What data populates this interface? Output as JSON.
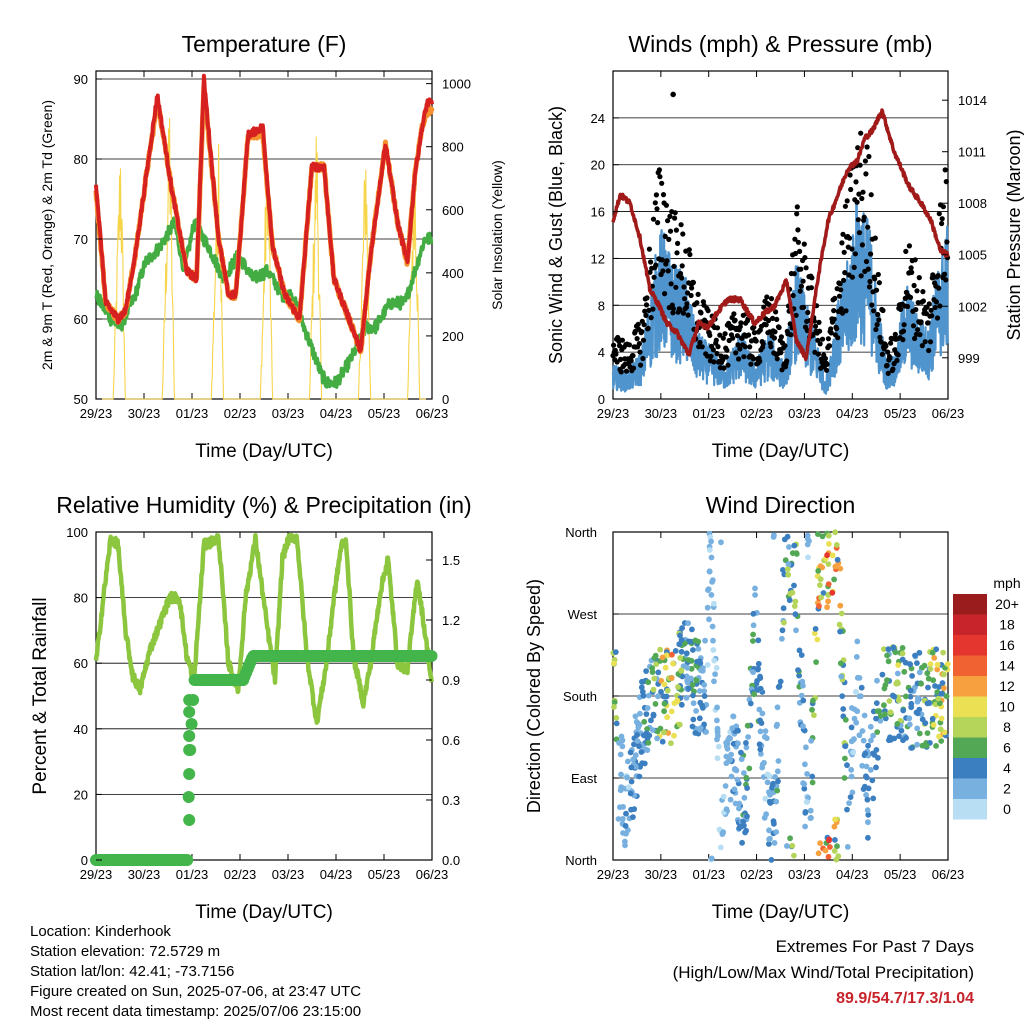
{
  "colors": {
    "t2m": "#d62120",
    "t9m": "#f5922f",
    "td": "#43ad43",
    "solar": "#f7d54a",
    "gust": "#000000",
    "wind": "#4f94cd",
    "pressure": "#a01a1a",
    "rh": "#8cc63f",
    "precip": "#43b54b",
    "extreme": "#c8242b"
  },
  "xaxis": {
    "title": "Time (Day/UTC)",
    "ticks": [
      "29/23",
      "30/23",
      "01/23",
      "02/23",
      "03/23",
      "04/23",
      "05/23",
      "06/23"
    ]
  },
  "temp": {
    "title": "Temperature (F)",
    "ylabel": "2m & 9m T (Red, Orange) & 2m Td (Green)",
    "y2label": "Solar Insolation (Yellow)",
    "ylim": [
      50,
      91
    ],
    "y2lim": [
      0,
      1040
    ],
    "yticks": [
      "50",
      "60",
      "70",
      "80",
      "90"
    ],
    "y2ticks": [
      "0",
      "200",
      "400",
      "600",
      "800",
      "1000"
    ]
  },
  "wind": {
    "title": "Winds (mph) & Pressure (mb)",
    "ylabel": "Sonic Wind & Gust (Blue, Black)",
    "y2label": "Station Pressure (Maroon)",
    "ylim": [
      0,
      28
    ],
    "y2lim": [
      996.6,
      1015.7
    ],
    "yticks": [
      "0",
      "4",
      "8",
      "12",
      "16",
      "20",
      "24"
    ],
    "y2ticks": [
      "999",
      "1002",
      "1005",
      "1008",
      "1011",
      "1014"
    ]
  },
  "rh": {
    "title": "Relative Humidity (%) & Precipitation (in)",
    "ylabel": "Percent & Total Rainfall",
    "ylim": [
      0,
      100
    ],
    "y2lim": [
      0,
      1.64
    ],
    "yticks": [
      "0",
      "20",
      "40",
      "60",
      "80",
      "100"
    ],
    "y2ticks": [
      "0.0",
      "0.3",
      "0.6",
      "0.9",
      "1.2",
      "1.5"
    ]
  },
  "dir": {
    "title": "Wind Direction",
    "ylabel": "Direction (Colored By Speed)",
    "yticks": [
      "North",
      "East",
      "South",
      "West",
      "North"
    ],
    "legend_title": "mph",
    "legend_labels": [
      "20+",
      "18",
      "16",
      "14",
      "12",
      "10",
      "8",
      "6",
      "4",
      "2",
      "0"
    ],
    "legend_colors": [
      "#9a1c1c",
      "#c8242b",
      "#e4352e",
      "#f06232",
      "#f7a040",
      "#ebe053",
      "#b5d55a",
      "#52a855",
      "#3c7fc0",
      "#78b1e0",
      "#b7def3"
    ]
  },
  "info": {
    "location": "Location: Kinderhook",
    "elevation": "Station elevation: 72.5729 m",
    "latlon": "Station lat/lon: 42.41; -73.7156",
    "created": "Figure created on Sun, 2025-07-06, at 23:47 UTC",
    "timestamp": "Most recent data timestamp: 2025/07/06 23:15:00"
  },
  "extremes": {
    "title": "Extremes For Past 7 Days",
    "subtitle": "(High/Low/Max Wind/Total Precipitation)",
    "values": "89.9/54.7/17.3/1.04"
  },
  "chart_data": [
    {
      "type": "line",
      "title": "Temperature (F)",
      "x_unit": "days since 29/23",
      "series": [
        {
          "name": "2m T",
          "color": "#d62120",
          "x": [
            0,
            0.2,
            0.45,
            0.6,
            0.8,
            1.05,
            1.25,
            1.35,
            1.55,
            1.85,
            2.05,
            2.2,
            2.5,
            2.7,
            2.85,
            3.1,
            3.4,
            3.6,
            3.85,
            4.15,
            4.4,
            4.65,
            4.85,
            5.1,
            5.4,
            5.6,
            5.9,
            6.15,
            6.35,
            6.5,
            6.65,
            6.75,
            6.85
          ],
          "y": [
            77,
            62,
            60,
            61,
            68,
            79,
            88,
            84,
            76,
            66,
            65,
            90,
            70,
            63,
            63,
            83,
            84,
            69,
            63,
            60,
            79,
            79,
            65,
            61,
            56,
            68,
            82,
            72,
            67,
            78,
            84,
            87,
            87
          ]
        },
        {
          "name": "9m T",
          "color": "#f5922f",
          "x": [
            0,
            0.2,
            0.45,
            0.6,
            0.8,
            1.05,
            1.25,
            1.35,
            1.55,
            1.85,
            2.05,
            2.2,
            2.5,
            2.7,
            2.85,
            3.1,
            3.4,
            3.6,
            3.85,
            4.15,
            4.4,
            4.65,
            4.85,
            5.1,
            5.4,
            5.6,
            5.9,
            6.15,
            6.35,
            6.5,
            6.65,
            6.75,
            6.85
          ],
          "y": [
            76,
            62,
            60,
            61,
            68,
            79,
            87,
            84,
            76,
            66,
            65,
            89,
            70,
            63,
            63,
            83,
            83,
            69,
            63,
            60,
            79,
            79,
            65,
            61,
            56,
            68,
            82,
            72,
            67,
            78,
            84,
            86,
            86
          ]
        },
        {
          "name": "2m Td",
          "color": "#43ad43",
          "x": [
            0,
            0.3,
            0.5,
            0.8,
            1.0,
            1.3,
            1.6,
            1.8,
            2.0,
            2.3,
            2.6,
            2.9,
            3.2,
            3.5,
            3.8,
            4.0,
            4.3,
            4.6,
            4.7,
            4.9,
            5.2,
            5.5,
            5.7,
            6.0,
            6.3,
            6.5,
            6.7,
            6.85
          ],
          "y": [
            63,
            60,
            59,
            63,
            67,
            69,
            72,
            66,
            72,
            69,
            65,
            68,
            65,
            66,
            63,
            63,
            58,
            53,
            52,
            52,
            55,
            59,
            59,
            62,
            62,
            66,
            70,
            70
          ]
        },
        {
          "name": "Solar Insolation",
          "color": "#f7d54a",
          "x": [
            0,
            0.35,
            0.5,
            0.6,
            1.0,
            1.35,
            1.5,
            1.6,
            2.0,
            2.35,
            2.5,
            2.6,
            3.0,
            3.35,
            3.5,
            3.6,
            4.0,
            4.35,
            4.5,
            4.6,
            5.0,
            5.35,
            5.5,
            5.6,
            6.0,
            6.35,
            6.5,
            6.6,
            6.85
          ],
          "y2": [
            0,
            0,
            900,
            0,
            0,
            0,
            1000,
            0,
            0,
            0,
            950,
            0,
            0,
            0,
            930,
            0,
            0,
            0,
            950,
            0,
            0,
            0,
            900,
            0,
            0,
            0,
            920,
            0,
            0
          ]
        }
      ]
    },
    {
      "type": "line",
      "title": "Winds (mph) & Pressure (mb)",
      "x_unit": "days since 29/23",
      "series": [
        {
          "name": "Gust",
          "color": "#000000",
          "x": [
            0,
            0.3,
            0.6,
            0.85,
            1.0,
            1.2,
            1.5,
            1.7,
            2.0,
            2.3,
            2.6,
            2.9,
            3.2,
            3.5,
            3.75,
            4.0,
            4.2,
            4.35,
            4.55,
            4.8,
            5.0,
            5.25,
            5.4,
            5.6,
            5.8,
            6.0,
            6.2,
            6.45,
            6.65,
            6.85
          ],
          "y": [
            5,
            4,
            6,
            15,
            18,
            14,
            12,
            8,
            6,
            5,
            7,
            5,
            8,
            4,
            14,
            10,
            6,
            3,
            9,
            15,
            20,
            18,
            10,
            4,
            5,
            12,
            10,
            7,
            14,
            18
          ]
        },
        {
          "name": "Sonic Wind",
          "color": "#4f94cd",
          "x": [
            0,
            0.3,
            0.6,
            0.85,
            1.0,
            1.2,
            1.5,
            1.7,
            2.0,
            2.3,
            2.6,
            2.9,
            3.2,
            3.5,
            3.75,
            4.0,
            4.2,
            4.35,
            4.55,
            4.8,
            5.0,
            5.25,
            5.4,
            5.6,
            5.8,
            6.0,
            6.2,
            6.45,
            6.65,
            6.85
          ],
          "y": [
            2,
            1.5,
            3,
            8,
            10,
            8,
            7,
            4,
            3,
            2,
            4,
            2,
            4,
            2,
            8,
            5,
            3,
            1,
            5,
            8,
            12,
            10,
            6,
            2,
            3,
            7,
            5,
            4,
            8,
            10
          ]
        },
        {
          "name": "Station Pressure",
          "color": "#a01a1a",
          "x": [
            0,
            0.15,
            0.35,
            0.55,
            0.75,
            0.95,
            1.1,
            1.3,
            1.55,
            1.75,
            1.95,
            2.15,
            2.35,
            2.6,
            2.9,
            3.1,
            3.3,
            3.55,
            3.75,
            3.95,
            4.2,
            4.4,
            4.6,
            4.8,
            5.0,
            5.15,
            5.3,
            5.5,
            5.75,
            6.05,
            6.3,
            6.5,
            6.7,
            6.85
          ],
          "y2": [
            1007,
            1008.5,
            1008,
            1006,
            1003,
            1002,
            1001,
            1000.5,
            999.2,
            1001,
            1000.8,
            1001.7,
            1002.4,
            1002.4,
            1001,
            1001.6,
            1002,
            1003.5,
            1000,
            999,
            1003.8,
            1007,
            1008.5,
            1010,
            1010.5,
            1011.8,
            1012.2,
            1013.4,
            1011,
            1009,
            1008,
            1007,
            1005.2,
            1005
          ]
        }
      ]
    },
    {
      "type": "line",
      "title": "Relative Humidity (%) & Precipitation (in)",
      "x_unit": "days since 29/23",
      "series": [
        {
          "name": "Relative Humidity",
          "color": "#8cc63f",
          "x": [
            0,
            0.15,
            0.3,
            0.45,
            0.6,
            0.75,
            0.9,
            1.1,
            1.3,
            1.5,
            1.7,
            1.85,
            2.0,
            2.2,
            2.5,
            2.7,
            2.9,
            3.05,
            3.25,
            3.5,
            3.65,
            3.8,
            3.95,
            4.1,
            4.3,
            4.5,
            4.7,
            4.85,
            5.0,
            5.1,
            5.25,
            5.45,
            5.6,
            5.8,
            5.95,
            6.15,
            6.35,
            6.55,
            6.7,
            6.85
          ],
          "y": [
            60,
            80,
            98,
            96,
            70,
            56,
            52,
            64,
            72,
            80,
            80,
            62,
            55,
            96,
            98,
            60,
            52,
            80,
            98,
            70,
            55,
            92,
            99,
            98,
            62,
            42,
            60,
            80,
            96,
            97,
            62,
            48,
            60,
            82,
            92,
            60,
            58,
            86,
            70,
            53
          ]
        },
        {
          "name": "Total Precipitation",
          "color": "#43b54b",
          "x": [
            0,
            0.9,
            1.87,
            1.88,
            1.9,
            1.92,
            1.94,
            1.96,
            1.98,
            2.0,
            2.5,
            3.0,
            3.2,
            3.4,
            6.85
          ],
          "y2": [
            0,
            0,
            0,
            0.2,
            0.43,
            0.55,
            0.62,
            0.74,
            0.8,
            0.9,
            0.9,
            0.9,
            1.02,
            1.02,
            1.02
          ]
        }
      ]
    },
    {
      "type": "scatter",
      "title": "Wind Direction",
      "x_unit": "days since 29/23",
      "y_unit": "degrees (North=0/360, East=90, South=180, West=270)",
      "series": [
        {
          "name": "Wind Direction",
          "x": [
            0.1,
            0.3,
            0.6,
            0.9,
            1.0,
            1.2,
            1.5,
            1.7,
            1.9,
            2.0,
            2.2,
            2.4,
            2.7,
            2.9,
            3.1,
            3.3,
            3.5,
            3.7,
            4.0,
            4.2,
            4.4,
            4.6,
            4.8,
            5.0,
            5.2,
            5.5,
            5.8,
            6.2,
            6.6,
            6.85
          ],
          "y": [
            100,
            60,
            150,
            180,
            175,
            180,
            220,
            190,
            190,
            350,
            30,
            120,
            60,
            250,
            100,
            30,
            320,
            350,
            10,
            330,
            330,
            360,
            40,
            210,
            70,
            180,
            180,
            175,
            180,
            180
          ],
          "speed": [
            2,
            3,
            4,
            8,
            10,
            12,
            4,
            6,
            3,
            2,
            1,
            3,
            5,
            6,
            2,
            4,
            6,
            8,
            2,
            12,
            14,
            12,
            3,
            2,
            4,
            6,
            8,
            4,
            10,
            10
          ]
        }
      ]
    }
  ]
}
